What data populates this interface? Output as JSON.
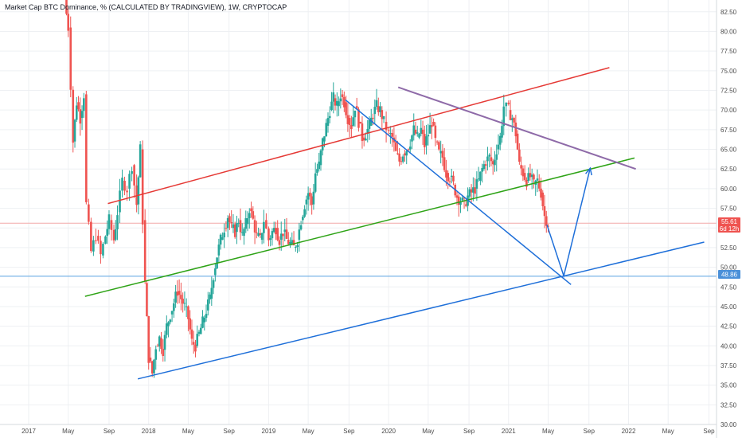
{
  "header": {
    "title": "Market Cap BTC Dominance, % (CALCULATED BY TRADINGVIEW), 1W, CRYPTOCAP"
  },
  "colors": {
    "up": "#26a69a",
    "down": "#ef5350",
    "red_line": "#e53935",
    "green_line": "#2ea316",
    "blue_line": "#1e6fd9",
    "purple_line": "#8e6aa8",
    "price_badge": "#ef5350",
    "level_badge": "#4a90d9",
    "level_line": "#5aa3e0",
    "price_line": "#f2a9a9",
    "grid": "#eef0f3"
  },
  "badges": {
    "price": "55.61",
    "countdown": "6d 12h",
    "level": "48.86"
  },
  "chart_data": {
    "type": "candlestick",
    "title": "Market Cap BTC Dominance, % (CALCULATED BY TRADINGVIEW), 1W, CRYPTOCAP",
    "y_axis_position": "right",
    "ylim": [
      30,
      84
    ],
    "y_ticks": [
      "30.00",
      "32.50",
      "35.00",
      "37.50",
      "40.00",
      "42.50",
      "45.00",
      "47.50",
      "50.00",
      "52.50",
      "55.00",
      "57.50",
      "60.00",
      "62.50",
      "65.00",
      "67.50",
      "70.00",
      "72.50",
      "75.00",
      "77.50",
      "80.00",
      "82.50"
    ],
    "xlim": [
      2017.0,
      2022.7
    ],
    "x_ticks": [
      {
        "label": "2017",
        "t": 2017.0
      },
      {
        "label": "May",
        "t": 2017.33
      },
      {
        "label": "Sep",
        "t": 2017.67
      },
      {
        "label": "2018",
        "t": 2018.0
      },
      {
        "label": "May",
        "t": 2018.33
      },
      {
        "label": "Sep",
        "t": 2018.67
      },
      {
        "label": "2019",
        "t": 2019.0
      },
      {
        "label": "May",
        "t": 2019.33
      },
      {
        "label": "Sep",
        "t": 2019.67
      },
      {
        "label": "2020",
        "t": 2020.0
      },
      {
        "label": "May",
        "t": 2020.33
      },
      {
        "label": "Sep",
        "t": 2020.67
      },
      {
        "label": "2021",
        "t": 2021.0
      },
      {
        "label": "May",
        "t": 2021.33
      },
      {
        "label": "Sep",
        "t": 2021.67
      },
      {
        "label": "2022",
        "t": 2022.0
      },
      {
        "label": "May",
        "t": 2022.33
      },
      {
        "label": "Sep",
        "t": 2022.67
      }
    ],
    "price_path": [
      [
        2017.3,
        84.0
      ],
      [
        2017.33,
        80.5
      ],
      [
        2017.37,
        66.0
      ],
      [
        2017.4,
        71.0
      ],
      [
        2017.43,
        69.0
      ],
      [
        2017.46,
        72.0
      ],
      [
        2017.48,
        58.0
      ],
      [
        2017.52,
        52.0
      ],
      [
        2017.56,
        54.0
      ],
      [
        2017.6,
        51.5
      ],
      [
        2017.64,
        54.0
      ],
      [
        2017.67,
        56.0
      ],
      [
        2017.71,
        53.5
      ],
      [
        2017.74,
        57.0
      ],
      [
        2017.78,
        61.0
      ],
      [
        2017.82,
        60.0
      ],
      [
        2017.86,
        63.0
      ],
      [
        2017.9,
        58.0
      ],
      [
        2017.93,
        65.0
      ],
      [
        2017.95,
        56.0
      ],
      [
        2017.97,
        48.0
      ],
      [
        2018.0,
        38.5
      ],
      [
        2018.03,
        36.5
      ],
      [
        2018.06,
        40.0
      ],
      [
        2018.09,
        41.0
      ],
      [
        2018.12,
        39.5
      ],
      [
        2018.15,
        42.5
      ],
      [
        2018.18,
        44.0
      ],
      [
        2018.21,
        45.5
      ],
      [
        2018.24,
        47.0
      ],
      [
        2018.27,
        46.0
      ],
      [
        2018.3,
        45.0
      ],
      [
        2018.33,
        43.5
      ],
      [
        2018.36,
        40.5
      ],
      [
        2018.39,
        40.0
      ],
      [
        2018.42,
        41.5
      ],
      [
        2018.45,
        43.0
      ],
      [
        2018.48,
        44.5
      ],
      [
        2018.51,
        46.0
      ],
      [
        2018.54,
        49.0
      ],
      [
        2018.57,
        51.5
      ],
      [
        2018.6,
        53.5
      ],
      [
        2018.63,
        55.0
      ],
      [
        2018.66,
        56.5
      ],
      [
        2018.69,
        55.0
      ],
      [
        2018.72,
        54.5
      ],
      [
        2018.75,
        56.0
      ],
      [
        2018.78,
        54.0
      ],
      [
        2018.81,
        55.5
      ],
      [
        2018.84,
        57.5
      ],
      [
        2018.87,
        56.0
      ],
      [
        2018.9,
        54.0
      ],
      [
        2018.93,
        53.5
      ],
      [
        2018.96,
        56.0
      ],
      [
        2019.0,
        53.5
      ],
      [
        2019.03,
        54.5
      ],
      [
        2019.06,
        55.0
      ],
      [
        2019.09,
        53.5
      ],
      [
        2019.12,
        54.5
      ],
      [
        2019.15,
        53.5
      ],
      [
        2019.18,
        53.0
      ],
      [
        2019.21,
        52.5
      ],
      [
        2019.24,
        53.5
      ],
      [
        2019.27,
        56.0
      ],
      [
        2019.3,
        58.0
      ],
      [
        2019.33,
        59.5
      ],
      [
        2019.36,
        58.0
      ],
      [
        2019.39,
        62.0
      ],
      [
        2019.42,
        63.0
      ],
      [
        2019.45,
        66.0
      ],
      [
        2019.48,
        68.0
      ],
      [
        2019.51,
        70.0
      ],
      [
        2019.54,
        71.5
      ],
      [
        2019.57,
        70.5
      ],
      [
        2019.6,
        72.0
      ],
      [
        2019.63,
        71.0
      ],
      [
        2019.66,
        69.0
      ],
      [
        2019.69,
        68.0
      ],
      [
        2019.72,
        70.5
      ],
      [
        2019.75,
        68.5
      ],
      [
        2019.78,
        66.5
      ],
      [
        2019.81,
        67.0
      ],
      [
        2019.84,
        68.0
      ],
      [
        2019.87,
        69.5
      ],
      [
        2019.9,
        70.5
      ],
      [
        2019.93,
        70.0
      ],
      [
        2019.96,
        68.5
      ],
      [
        2020.0,
        67.0
      ],
      [
        2020.03,
        66.5
      ],
      [
        2020.06,
        64.5
      ],
      [
        2020.09,
        63.5
      ],
      [
        2020.12,
        64.5
      ],
      [
        2020.15,
        65.0
      ],
      [
        2020.18,
        66.0
      ],
      [
        2020.21,
        67.5
      ],
      [
        2020.24,
        66.5
      ],
      [
        2020.27,
        67.5
      ],
      [
        2020.3,
        65.5
      ],
      [
        2020.33,
        67.0
      ],
      [
        2020.36,
        68.5
      ],
      [
        2020.39,
        66.0
      ],
      [
        2020.42,
        64.5
      ],
      [
        2020.45,
        64.0
      ],
      [
        2020.48,
        62.0
      ],
      [
        2020.51,
        61.5
      ],
      [
        2020.54,
        60.5
      ],
      [
        2020.57,
        59.0
      ],
      [
        2020.6,
        58.5
      ],
      [
        2020.63,
        58.0
      ],
      [
        2020.66,
        59.0
      ],
      [
        2020.69,
        59.5
      ],
      [
        2020.72,
        60.0
      ],
      [
        2020.75,
        61.0
      ],
      [
        2020.78,
        62.5
      ],
      [
        2020.81,
        63.5
      ],
      [
        2020.84,
        64.0
      ],
      [
        2020.87,
        63.0
      ],
      [
        2020.9,
        65.0
      ],
      [
        2020.93,
        66.5
      ],
      [
        2020.96,
        70.5
      ],
      [
        2021.0,
        70.0
      ],
      [
        2021.03,
        69.0
      ],
      [
        2021.06,
        67.0
      ],
      [
        2021.09,
        63.0
      ],
      [
        2021.12,
        62.0
      ],
      [
        2021.15,
        61.0
      ],
      [
        2021.18,
        61.5
      ],
      [
        2021.21,
        60.5
      ],
      [
        2021.24,
        61.0
      ],
      [
        2021.27,
        59.5
      ],
      [
        2021.3,
        56.5
      ],
      [
        2021.33,
        55.6
      ]
    ],
    "drawn_lines": [
      {
        "name": "red-resistance-line",
        "color_key": "red_line",
        "points": [
          [
            2017.66,
            58.1
          ],
          [
            2021.84,
            75.4
          ]
        ]
      },
      {
        "name": "green-support-line",
        "color_key": "green_line",
        "points": [
          [
            2017.47,
            46.3
          ],
          [
            2022.05,
            63.9
          ]
        ]
      },
      {
        "name": "blue-bottom-line",
        "color_key": "blue_line",
        "points": [
          [
            2017.91,
            35.8
          ],
          [
            2022.63,
            53.2
          ]
        ]
      },
      {
        "name": "blue-descending-line",
        "color_key": "blue_line",
        "points": [
          [
            2019.64,
            71.3
          ],
          [
            2021.52,
            47.8
          ]
        ]
      },
      {
        "name": "purple-descending-line",
        "color_key": "purple_line",
        "points": [
          [
            2020.08,
            72.9
          ],
          [
            2022.06,
            62.5
          ]
        ]
      },
      {
        "name": "blue-projection-path",
        "color_key": "blue_line",
        "points": [
          [
            2021.32,
            55.4
          ],
          [
            2021.46,
            48.9
          ],
          [
            2021.68,
            62.6
          ]
        ]
      }
    ],
    "horizontal_levels": [
      {
        "name": "blue-horizontal-level",
        "value": 48.86,
        "color_key": "level_line"
      },
      {
        "name": "price-horizontal-line",
        "value": 55.61,
        "color_key": "price_line"
      }
    ]
  }
}
